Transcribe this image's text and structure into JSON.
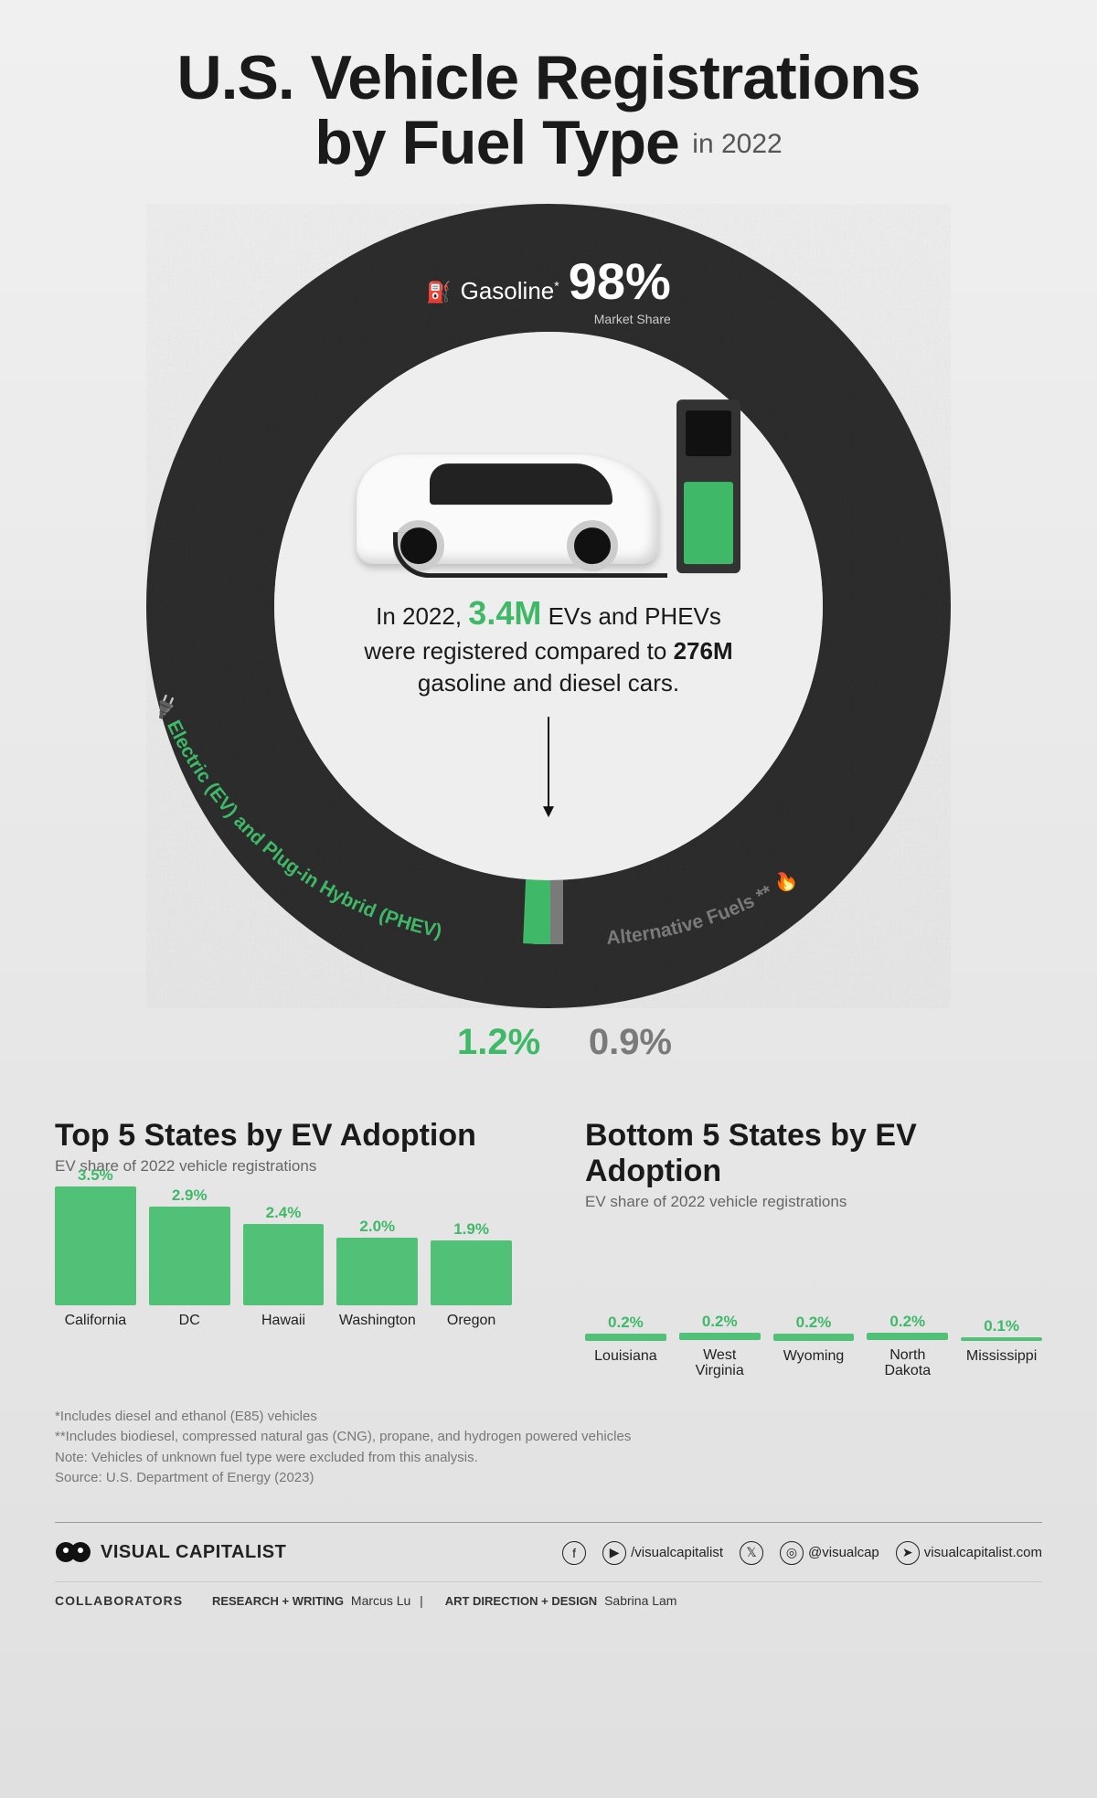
{
  "title": {
    "line1": "U.S. Vehicle Registrations",
    "line2": "by Fuel Type",
    "year": "in 2022",
    "fontsize_main": 68,
    "fontsize_year": 30,
    "color": "#1a1a1a"
  },
  "donut": {
    "type": "donut",
    "outer_radius": 440,
    "inner_radius": 300,
    "background_color": "#e8e8e8",
    "segments": [
      {
        "name": "Gasoline*",
        "value": 98.0,
        "color": "#2a2a2a",
        "texture": "marble-dark"
      },
      {
        "name": "Electric (EV) and Plug-in Hybrid (PHEV)",
        "value": 1.2,
        "color": "#3fb968"
      },
      {
        "name": "Alternative Fuels**",
        "value": 0.9,
        "color": "#7a7a7a"
      }
    ],
    "gasoline_label": {
      "icon": "fuel-pump",
      "text": "Gasoline",
      "asterisk": "*",
      "pct": "98%",
      "sub": "Market Share",
      "text_color": "#ffffff",
      "pct_fontsize": 56
    },
    "ev_label": {
      "icon": "ev-plug",
      "text": "Electric (EV) and Plug-in Hybrid (PHEV)",
      "pct": "1.2%",
      "color": "#3fb968",
      "fontsize": 21,
      "pct_fontsize": 40
    },
    "alt_label": {
      "text": "Alternative Fuels",
      "asterisk": "**",
      "icon": "flame",
      "pct": "0.9%",
      "color": "#7a7a7a",
      "fontsize": 21,
      "pct_fontsize": 40
    },
    "center_text": {
      "line1_pre": "In 2022, ",
      "highlight1": "3.4M",
      "line1_post": " EVs and PHEVs",
      "line2": "were registered compared to ",
      "highlight2": "276M",
      "line3": "gasoline and diesel cars.",
      "fontsize": 26,
      "highlight1_color": "#3fb968",
      "highlight_fontsize": 36
    },
    "center_illustration": {
      "car_color": "#fafafa",
      "charger_color": "#333333",
      "charger_accent": "#3fb968"
    }
  },
  "top5_chart": {
    "type": "bar",
    "title": "Top 5 States by EV Adoption",
    "subtitle": "EV share of 2022 vehicle registrations",
    "ymax": 3.5,
    "bar_color": "#52c178",
    "value_color": "#3fb968",
    "value_fontsize": 17,
    "label_fontsize": 16,
    "items": [
      {
        "label": "California",
        "value": 3.5,
        "display": "3.5%"
      },
      {
        "label": "DC",
        "value": 2.9,
        "display": "2.9%"
      },
      {
        "label": "Hawaii",
        "value": 2.4,
        "display": "2.4%"
      },
      {
        "label": "Washington",
        "value": 2.0,
        "display": "2.0%"
      },
      {
        "label": "Oregon",
        "value": 1.9,
        "display": "1.9%"
      }
    ]
  },
  "bottom5_chart": {
    "type": "bar",
    "title": "Bottom 5 States by EV Adoption",
    "subtitle": "EV share of 2022 vehicle registrations",
    "ymax": 3.5,
    "bar_color": "#52c178",
    "value_color": "#3fb968",
    "value_fontsize": 17,
    "label_fontsize": 16,
    "items": [
      {
        "label": "Louisiana",
        "value": 0.2,
        "display": "0.2%"
      },
      {
        "label": "West Virginia",
        "value": 0.2,
        "display": "0.2%"
      },
      {
        "label": "Wyoming",
        "value": 0.2,
        "display": "0.2%"
      },
      {
        "label": "North Dakota",
        "value": 0.2,
        "display": "0.2%"
      },
      {
        "label": "Mississippi",
        "value": 0.1,
        "display": "0.1%"
      }
    ]
  },
  "notes": {
    "n1": "*Includes diesel and ethanol (E85) vehicles",
    "n2": "**Includes biodiesel, compressed natural gas (CNG), propane, and hydrogen powered vehicles",
    "n3": "Note: Vehicles of unknown fuel type were excluded from this analysis.",
    "src": "Source: U.S. Department of Energy (2023)",
    "color": "#777777",
    "fontsize": 15
  },
  "footer": {
    "brand": "VISUAL CAPITALIST",
    "socials": {
      "fb_yt": "/visualcapitalist",
      "tw_ig": "@visualcap",
      "site": "visualcapitalist.com"
    }
  },
  "credits": {
    "label": "COLLABORATORS",
    "research_role": "RESEARCH + WRITING",
    "research_name": "Marcus Lu",
    "sep": "|",
    "design_role": "ART DIRECTION + DESIGN",
    "design_name": "Sabrina Lam"
  }
}
